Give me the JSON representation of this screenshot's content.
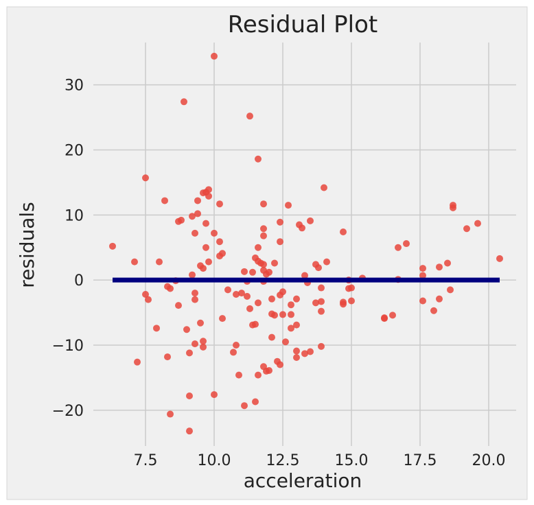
{
  "chart_data": {
    "type": "scatter",
    "title": "Residual Plot",
    "xlabel": "acceleration",
    "ylabel": "residuals",
    "xlim": [
      5.6,
      21.0
    ],
    "ylim": [
      -25.5,
      36.5
    ],
    "xticks": [
      {
        "value": 7.5,
        "label": "7.5"
      },
      {
        "value": 10.0,
        "label": "10.0"
      },
      {
        "value": 12.5,
        "label": "12.5"
      },
      {
        "value": 15.0,
        "label": "15.0"
      },
      {
        "value": 17.5,
        "label": "17.5"
      },
      {
        "value": 20.0,
        "label": "20.0"
      }
    ],
    "yticks": [
      {
        "value": -20,
        "label": "−20"
      },
      {
        "value": -10,
        "label": "−10"
      },
      {
        "value": 0,
        "label": "0"
      },
      {
        "value": 10,
        "label": "10"
      },
      {
        "value": 20,
        "label": "20"
      },
      {
        "value": 30,
        "label": "30"
      }
    ],
    "grid": true,
    "style": "fivethirtyeight",
    "colors": {
      "points": "#e8473c",
      "line": "#00007f",
      "background": "#f0f0f0",
      "grid": "#cbcbcb"
    },
    "series": [
      {
        "points": [
          [
            6.3,
            5.2
          ],
          [
            7.1,
            2.8
          ],
          [
            7.2,
            -12.6
          ],
          [
            7.5,
            -2.2
          ],
          [
            7.5,
            15.7
          ],
          [
            7.6,
            -3.0
          ],
          [
            7.9,
            -7.4
          ],
          [
            8.0,
            2.8
          ],
          [
            8.2,
            12.2
          ],
          [
            8.3,
            -1.0
          ],
          [
            8.3,
            -11.8
          ],
          [
            8.4,
            -1.3
          ],
          [
            8.4,
            -20.6
          ],
          [
            8.6,
            -0.1
          ],
          [
            8.7,
            -3.9
          ],
          [
            8.7,
            9.0
          ],
          [
            8.8,
            9.2
          ],
          [
            8.9,
            27.4
          ],
          [
            9.0,
            -7.6
          ],
          [
            9.1,
            -11.2
          ],
          [
            9.1,
            -17.8
          ],
          [
            9.1,
            -23.2
          ],
          [
            9.2,
            9.8
          ],
          [
            9.2,
            0.8
          ],
          [
            9.3,
            -2.0
          ],
          [
            9.3,
            -3.0
          ],
          [
            9.3,
            -9.8
          ],
          [
            9.3,
            7.2
          ],
          [
            9.4,
            10.2
          ],
          [
            9.4,
            12.2
          ],
          [
            9.5,
            2.2
          ],
          [
            9.5,
            -6.6
          ],
          [
            9.6,
            -9.4
          ],
          [
            9.6,
            -10.3
          ],
          [
            9.6,
            13.4
          ],
          [
            9.6,
            1.8
          ],
          [
            9.7,
            5.0
          ],
          [
            9.7,
            8.7
          ],
          [
            9.7,
            13.5
          ],
          [
            9.8,
            2.8
          ],
          [
            9.8,
            12.9
          ],
          [
            9.8,
            13.9
          ],
          [
            10.0,
            7.2
          ],
          [
            10.0,
            34.4
          ],
          [
            10.0,
            -17.6
          ],
          [
            10.2,
            11.7
          ],
          [
            10.2,
            5.9
          ],
          [
            10.2,
            3.7
          ],
          [
            10.3,
            4.1
          ],
          [
            10.3,
            -5.9
          ],
          [
            10.5,
            -1.5
          ],
          [
            10.7,
            -11.1
          ],
          [
            10.8,
            -2.2
          ],
          [
            10.8,
            -10.0
          ],
          [
            10.9,
            -14.6
          ],
          [
            11.0,
            -2.0
          ],
          [
            11.1,
            1.3
          ],
          [
            11.1,
            -19.3
          ],
          [
            11.2,
            -0.2
          ],
          [
            11.2,
            -2.5
          ],
          [
            11.3,
            -4.4
          ],
          [
            11.3,
            25.2
          ],
          [
            11.4,
            1.2
          ],
          [
            11.4,
            -6.9
          ],
          [
            11.5,
            3.4
          ],
          [
            11.5,
            -6.8
          ],
          [
            11.5,
            -18.7
          ],
          [
            11.6,
            18.6
          ],
          [
            11.6,
            5.0
          ],
          [
            11.6,
            2.9
          ],
          [
            11.6,
            -3.5
          ],
          [
            11.6,
            -14.6
          ],
          [
            11.7,
            2.6
          ],
          [
            11.8,
            11.7
          ],
          [
            11.8,
            7.9
          ],
          [
            11.8,
            6.8
          ],
          [
            11.8,
            2.4
          ],
          [
            11.8,
            1.5
          ],
          [
            11.8,
            -0.2
          ],
          [
            11.8,
            -13.3
          ],
          [
            11.9,
            -14.0
          ],
          [
            11.9,
            0.9
          ],
          [
            12.0,
            1.2
          ],
          [
            12.0,
            -13.9
          ],
          [
            12.1,
            -2.9
          ],
          [
            12.1,
            -5.2
          ],
          [
            12.1,
            -8.8
          ],
          [
            12.2,
            2.6
          ],
          [
            12.2,
            -5.4
          ],
          [
            12.3,
            -12.5
          ],
          [
            12.4,
            -13.0
          ],
          [
            12.4,
            8.9
          ],
          [
            12.4,
            5.9
          ],
          [
            12.4,
            -2.3
          ],
          [
            12.5,
            -1.8
          ],
          [
            12.5,
            -5.3
          ],
          [
            12.6,
            -9.5
          ],
          [
            12.7,
            11.5
          ],
          [
            12.8,
            -3.8
          ],
          [
            12.8,
            -5.3
          ],
          [
            12.8,
            -7.4
          ],
          [
            13.0,
            -2.9
          ],
          [
            13.0,
            -6.9
          ],
          [
            13.0,
            -10.9
          ],
          [
            13.0,
            -11.9
          ],
          [
            13.1,
            8.5
          ],
          [
            13.2,
            8.0
          ],
          [
            13.3,
            0.7
          ],
          [
            13.3,
            -11.3
          ],
          [
            13.4,
            -0.4
          ],
          [
            13.5,
            9.1
          ],
          [
            13.5,
            -11.0
          ],
          [
            13.7,
            2.4
          ],
          [
            13.7,
            -3.5
          ],
          [
            13.8,
            1.9
          ],
          [
            13.9,
            -1.2
          ],
          [
            13.9,
            -3.3
          ],
          [
            13.9,
            -4.8
          ],
          [
            13.9,
            -10.2
          ],
          [
            14.0,
            14.2
          ],
          [
            14.1,
            2.8
          ],
          [
            14.7,
            7.4
          ],
          [
            14.7,
            -3.4
          ],
          [
            14.7,
            -3.7
          ],
          [
            14.9,
            0.0
          ],
          [
            14.9,
            -1.3
          ],
          [
            15.0,
            -3.2
          ],
          [
            15.0,
            -1.2
          ],
          [
            15.4,
            0.3
          ],
          [
            16.2,
            -5.9
          ],
          [
            16.2,
            -5.8
          ],
          [
            16.5,
            -5.4
          ],
          [
            16.7,
            5.0
          ],
          [
            16.7,
            0.1
          ],
          [
            17.0,
            5.6
          ],
          [
            17.6,
            1.8
          ],
          [
            17.6,
            0.7
          ],
          [
            17.6,
            -3.2
          ],
          [
            18.0,
            -4.7
          ],
          [
            18.2,
            2.0
          ],
          [
            18.2,
            -2.9
          ],
          [
            18.5,
            2.6
          ],
          [
            18.6,
            -1.5
          ],
          [
            18.7,
            11.5
          ],
          [
            18.7,
            11.1
          ],
          [
            19.2,
            7.9
          ],
          [
            19.6,
            8.7
          ],
          [
            20.4,
            3.3
          ]
        ]
      },
      {
        "type": "line",
        "points": [
          [
            6.3,
            0.0
          ],
          [
            20.4,
            0.0
          ]
        ]
      }
    ]
  }
}
